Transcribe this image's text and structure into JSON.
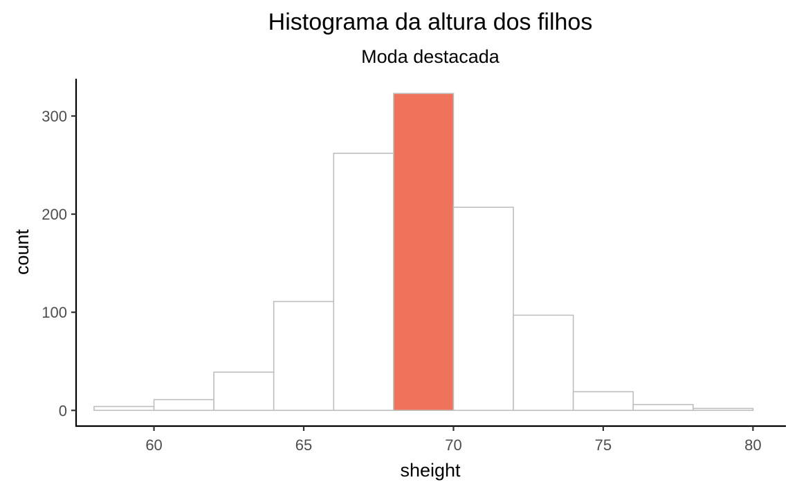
{
  "chart_data": {
    "type": "bar",
    "title": "Histograma da altura dos filhos",
    "subtitle": "Moda destacada",
    "xlabel": "sheight",
    "ylabel": "count",
    "xlim": [
      57.4,
      81.1
    ],
    "ylim": [
      -16,
      338
    ],
    "x_ticks": [
      60,
      65,
      70,
      75,
      80
    ],
    "y_ticks": [
      0,
      100,
      200,
      300
    ],
    "bins": [
      {
        "start": 58,
        "end": 60,
        "count": 4
      },
      {
        "start": 60,
        "end": 62,
        "count": 11
      },
      {
        "start": 62,
        "end": 64,
        "count": 39
      },
      {
        "start": 64,
        "end": 66,
        "count": 111
      },
      {
        "start": 66,
        "end": 68,
        "count": 262
      },
      {
        "start": 68,
        "end": 70,
        "count": 323,
        "highlight": true
      },
      {
        "start": 70,
        "end": 72,
        "count": 207
      },
      {
        "start": 72,
        "end": 74,
        "count": 97
      },
      {
        "start": 74,
        "end": 76,
        "count": 19
      },
      {
        "start": 76,
        "end": 78,
        "count": 6
      },
      {
        "start": 78,
        "end": 80,
        "count": 2
      }
    ],
    "grid": false,
    "colors": {
      "bar_fill": "#ffffff",
      "bar_stroke": "#bebebe",
      "highlight_fill": "#ef735b"
    }
  }
}
